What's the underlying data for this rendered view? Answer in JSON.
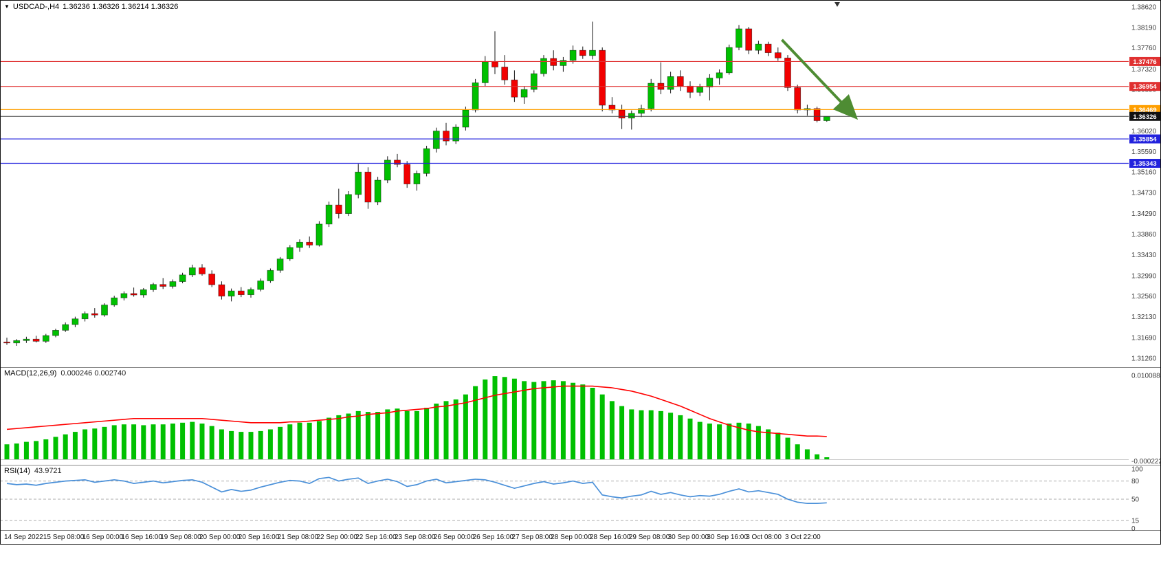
{
  "header": {
    "symbol_marker": "dropdown-triangle"
  },
  "chart_data": [
    {
      "type": "candlestick",
      "symbol": "USDCAD-",
      "timeframe": "H4",
      "title": "USDCAD-,H4",
      "ohlc_display": "1.36236 1.36326 1.36214 1.36326",
      "open": 1.36236,
      "high": 1.36326,
      "low": 1.36214,
      "close": 1.36326,
      "up_color": "#00c000",
      "down_color": "#f20000",
      "wick_color": "#151515",
      "ylim": [
        1.3126,
        1.3862
      ],
      "y_axis_labels": [
        "1.38620",
        "1.38190",
        "1.37760",
        "1.37320",
        "1.36890",
        "1.36460",
        "1.36020",
        "1.35590",
        "1.35160",
        "1.34730",
        "1.34290",
        "1.33860",
        "1.33430",
        "1.32990",
        "1.32560",
        "1.32130",
        "1.31690",
        "1.31260"
      ],
      "x_labels": [
        "14 Sep 2022",
        "15 Sep 08:00",
        "16 Sep 00:00",
        "16 Sep 16:00",
        "19 Sep 08:00",
        "20 Sep 00:00",
        "20 Sep 16:00",
        "21 Sep 08:00",
        "22 Sep 00:00",
        "22 Sep 16:00",
        "23 Sep 08:00",
        "26 Sep 00:00",
        "26 Sep 16:00",
        "27 Sep 08:00",
        "28 Sep 00:00",
        "28 Sep 16:00",
        "29 Sep 08:00",
        "30 Sep 00:00",
        "30 Sep 16:00",
        "3 Oct 08:00",
        "3 Oct 22:00"
      ],
      "hlines": [
        {
          "price": 1.37476,
          "label": "1.37476",
          "color": "#e03131"
        },
        {
          "price": 1.36954,
          "label": "1.36954",
          "color": "#e03131"
        },
        {
          "price": 1.36469,
          "label": "1.36469",
          "color": "#ff9f00"
        },
        {
          "price": 1.35854,
          "label": "1.35854",
          "color": "#2222dd"
        },
        {
          "price": 1.35343,
          "label": "1.35343",
          "color": "#2222dd"
        }
      ],
      "current_price": {
        "price": 1.36326,
        "label": "1.36326",
        "line_color": "#444444",
        "tag_color": "#111111"
      },
      "arrow": {
        "x1_index": 79.4,
        "y1_price": 1.3793,
        "x2_index": 86.8,
        "y2_price": 1.3634,
        "color": "#4e8c33"
      },
      "candles": [
        [
          1.316,
          1.3169,
          1.3154,
          1.3158
        ],
        [
          1.3158,
          1.3166,
          1.3152,
          1.3163
        ],
        [
          1.3163,
          1.3171,
          1.3158,
          1.3166
        ],
        [
          1.3166,
          1.3173,
          1.3159,
          1.31615
        ],
        [
          1.31615,
          1.3177,
          1.3158,
          1.31735
        ],
        [
          1.31735,
          1.3188,
          1.317,
          1.31845
        ],
        [
          1.31845,
          1.3201,
          1.3181,
          1.31965
        ],
        [
          1.31965,
          1.3213,
          1.3191,
          1.32085
        ],
        [
          1.32085,
          1.3224,
          1.3203,
          1.32195
        ],
        [
          1.32195,
          1.3231,
          1.3211,
          1.32165
        ],
        [
          1.32165,
          1.3241,
          1.3213,
          1.32375
        ],
        [
          1.32375,
          1.3257,
          1.3234,
          1.32525
        ],
        [
          1.32525,
          1.3266,
          1.3247,
          1.32615
        ],
        [
          1.32615,
          1.3274,
          1.3255,
          1.32585
        ],
        [
          1.32585,
          1.3273,
          1.3253,
          1.32695
        ],
        [
          1.32695,
          1.3284,
          1.3265,
          1.32805
        ],
        [
          1.32805,
          1.3294,
          1.3271,
          1.32765
        ],
        [
          1.32765,
          1.3291,
          1.3272,
          1.32865
        ],
        [
          1.32865,
          1.3305,
          1.3283,
          1.33005
        ],
        [
          1.33005,
          1.3322,
          1.3296,
          1.33155
        ],
        [
          1.33155,
          1.3323,
          1.3299,
          1.33025
        ],
        [
          1.33025,
          1.331,
          1.3275,
          1.328
        ],
        [
          1.328,
          1.3287,
          1.3249,
          1.3256
        ],
        [
          1.3256,
          1.3272,
          1.3245,
          1.3267
        ],
        [
          1.3267,
          1.3275,
          1.3254,
          1.3259
        ],
        [
          1.3259,
          1.3274,
          1.3253,
          1.327
        ],
        [
          1.327,
          1.3293,
          1.3266,
          1.3288
        ],
        [
          1.3288,
          1.3314,
          1.3284,
          1.331
        ],
        [
          1.331,
          1.3338,
          1.3305,
          1.3334
        ],
        [
          1.3334,
          1.3363,
          1.333,
          1.3358
        ],
        [
          1.3358,
          1.3375,
          1.3349,
          1.3369
        ],
        [
          1.3369,
          1.3381,
          1.3357,
          1.3363
        ],
        [
          1.3363,
          1.3413,
          1.336,
          1.3407
        ],
        [
          1.3407,
          1.3454,
          1.3401,
          1.3447
        ],
        [
          1.3447,
          1.3481,
          1.3419,
          1.3429
        ],
        [
          1.3429,
          1.3476,
          1.3424,
          1.3469
        ],
        [
          1.3469,
          1.3533,
          1.3461,
          1.3516
        ],
        [
          1.3516,
          1.3526,
          1.3439,
          1.3453
        ],
        [
          1.3453,
          1.3506,
          1.3447,
          1.3499
        ],
        [
          1.3499,
          1.3549,
          1.3493,
          1.3541
        ],
        [
          1.3541,
          1.3554,
          1.3526,
          1.3532
        ],
        [
          1.3532,
          1.3539,
          1.3483,
          1.3491
        ],
        [
          1.3491,
          1.3519,
          1.3477,
          1.3513
        ],
        [
          1.3513,
          1.3571,
          1.3507,
          1.3565
        ],
        [
          1.3565,
          1.3609,
          1.3557,
          1.3602
        ],
        [
          1.3602,
          1.3619,
          1.3572,
          1.3581
        ],
        [
          1.3581,
          1.3616,
          1.3575,
          1.361
        ],
        [
          1.361,
          1.3653,
          1.3603,
          1.3646
        ],
        [
          1.3646,
          1.3711,
          1.3641,
          1.3703
        ],
        [
          1.3703,
          1.3759,
          1.3696,
          1.3747
        ],
        [
          1.3747,
          1.3811,
          1.3721,
          1.3736
        ],
        [
          1.3736,
          1.3761,
          1.3699,
          1.3709
        ],
        [
          1.3709,
          1.3729,
          1.3663,
          1.3673
        ],
        [
          1.3673,
          1.3696,
          1.3659,
          1.3689
        ],
        [
          1.3689,
          1.3729,
          1.3683,
          1.3722
        ],
        [
          1.3722,
          1.3761,
          1.3716,
          1.3754
        ],
        [
          1.3754,
          1.3771,
          1.3729,
          1.3739
        ],
        [
          1.3739,
          1.3757,
          1.3726,
          1.375
        ],
        [
          1.375,
          1.3781,
          1.3743,
          1.3771
        ],
        [
          1.3771,
          1.3779,
          1.3753,
          1.376
        ],
        [
          1.376,
          1.3831,
          1.3752,
          1.3771
        ],
        [
          1.3771,
          1.3777,
          1.3643,
          1.3656
        ],
        [
          1.3656,
          1.3673,
          1.3639,
          1.3646
        ],
        [
          1.3646,
          1.3657,
          1.3606,
          1.3629
        ],
        [
          1.3629,
          1.3645,
          1.3605,
          1.3639
        ],
        [
          1.3639,
          1.3657,
          1.3631,
          1.3649
        ],
        [
          1.3649,
          1.3711,
          1.3643,
          1.3702
        ],
        [
          1.3702,
          1.3746,
          1.3679,
          1.3689
        ],
        [
          1.3689,
          1.3726,
          1.3681,
          1.3716
        ],
        [
          1.3716,
          1.3729,
          1.3686,
          1.3696
        ],
        [
          1.3696,
          1.3706,
          1.3671,
          1.3683
        ],
        [
          1.3683,
          1.3701,
          1.3675,
          1.3694
        ],
        [
          1.3694,
          1.3721,
          1.3666,
          1.3713
        ],
        [
          1.3713,
          1.3731,
          1.3699,
          1.3724
        ],
        [
          1.3724,
          1.3783,
          1.372,
          1.3777
        ],
        [
          1.3777,
          1.3824,
          1.3771,
          1.3816
        ],
        [
          1.3816,
          1.382,
          1.3763,
          1.3771
        ],
        [
          1.3771,
          1.3791,
          1.3763,
          1.3784
        ],
        [
          1.3784,
          1.3789,
          1.3759,
          1.3766
        ],
        [
          1.3766,
          1.3777,
          1.3749,
          1.3755
        ],
        [
          1.3755,
          1.3761,
          1.3686,
          1.3693
        ],
        [
          1.3693,
          1.3699,
          1.3639,
          1.3646
        ],
        [
          1.3646,
          1.3657,
          1.3634,
          1.3649
        ],
        [
          1.3649,
          1.3653,
          1.362,
          1.36236
        ],
        [
          1.36236,
          1.36326,
          1.36214,
          1.36326
        ]
      ]
    },
    {
      "type": "bar",
      "name": "MACD(12,26,9)",
      "values_display": "0.000246 0.002740",
      "macd_value": 0.000246,
      "signal_value": 0.00274,
      "bar_color": "#00c000",
      "signal_color": "#ff0000",
      "ylim": [
        -0.000222,
        0.010088
      ],
      "y_axis_labels": [
        "0.010088",
        "-0.000222"
      ],
      "histogram": [
        0.0018,
        0.0019,
        0.0021,
        0.0022,
        0.0024,
        0.0027,
        0.003,
        0.0033,
        0.0036,
        0.0037,
        0.0039,
        0.0041,
        0.0042,
        0.0042,
        0.0041,
        0.0042,
        0.0042,
        0.0043,
        0.0044,
        0.0045,
        0.0043,
        0.004,
        0.0036,
        0.0034,
        0.0033,
        0.0033,
        0.0034,
        0.0036,
        0.0039,
        0.0042,
        0.0044,
        0.0044,
        0.0046,
        0.005,
        0.0053,
        0.0055,
        0.0058,
        0.0057,
        0.0057,
        0.006,
        0.0061,
        0.0058,
        0.0058,
        0.0062,
        0.0067,
        0.007,
        0.0072,
        0.0078,
        0.0088,
        0.0096,
        0.01,
        0.0099,
        0.0097,
        0.0094,
        0.0093,
        0.0094,
        0.0095,
        0.0094,
        0.0092,
        0.009,
        0.0086,
        0.0078,
        0.007,
        0.0064,
        0.006,
        0.0059,
        0.0059,
        0.0058,
        0.0056,
        0.0053,
        0.0049,
        0.0045,
        0.0043,
        0.0042,
        0.0043,
        0.0044,
        0.0043,
        0.004,
        0.0036,
        0.0032,
        0.0026,
        0.0018,
        0.0012,
        0.0006,
        0.000246
      ],
      "signal": [
        0.0036,
        0.0037,
        0.0038,
        0.0039,
        0.004,
        0.0041,
        0.0042,
        0.0043,
        0.0044,
        0.0045,
        0.0046,
        0.0047,
        0.0048,
        0.0049,
        0.0049,
        0.0049,
        0.0049,
        0.0049,
        0.0049,
        0.0049,
        0.0049,
        0.0048,
        0.0047,
        0.0046,
        0.0045,
        0.0044,
        0.0044,
        0.0044,
        0.0044,
        0.0045,
        0.0045,
        0.0046,
        0.0047,
        0.0048,
        0.0049,
        0.0051,
        0.0052,
        0.0054,
        0.0055,
        0.0056,
        0.0058,
        0.0059,
        0.006,
        0.0061,
        0.0063,
        0.0064,
        0.0066,
        0.0068,
        0.0071,
        0.0074,
        0.0077,
        0.0079,
        0.0081,
        0.0083,
        0.0085,
        0.0086,
        0.0087,
        0.0088,
        0.0088,
        0.0088,
        0.0088,
        0.0087,
        0.0086,
        0.0084,
        0.0082,
        0.0079,
        0.0076,
        0.0072,
        0.0068,
        0.0064,
        0.0059,
        0.0054,
        0.0049,
        0.0045,
        0.0041,
        0.0038,
        0.0035,
        0.0033,
        0.0032,
        0.0031,
        0.003,
        0.0029,
        0.0028,
        0.0028,
        0.00274
      ]
    },
    {
      "type": "line",
      "name": "RSI(14)",
      "value_display": "43.9721",
      "value": 43.9721,
      "line_color": "#4a90d9",
      "levels": [
        80,
        50,
        15
      ],
      "ylim": [
        0,
        100
      ],
      "y_axis_labels": [
        "100",
        "80",
        "50",
        "15",
        "0"
      ],
      "values": [
        76,
        74,
        75,
        73,
        76,
        78,
        80,
        81,
        82,
        78,
        80,
        82,
        80,
        76,
        78,
        80,
        77,
        79,
        81,
        82,
        78,
        70,
        62,
        66,
        63,
        65,
        70,
        74,
        78,
        81,
        80,
        76,
        84,
        86,
        80,
        83,
        85,
        76,
        80,
        83,
        79,
        71,
        74,
        80,
        83,
        77,
        79,
        81,
        83,
        82,
        78,
        73,
        68,
        72,
        76,
        79,
        75,
        77,
        80,
        76,
        78,
        57,
        54,
        52,
        55,
        57,
        63,
        58,
        61,
        57,
        54,
        56,
        55,
        58,
        63,
        67,
        62,
        64,
        61,
        58,
        50,
        45,
        43,
        43,
        43.97
      ]
    }
  ]
}
